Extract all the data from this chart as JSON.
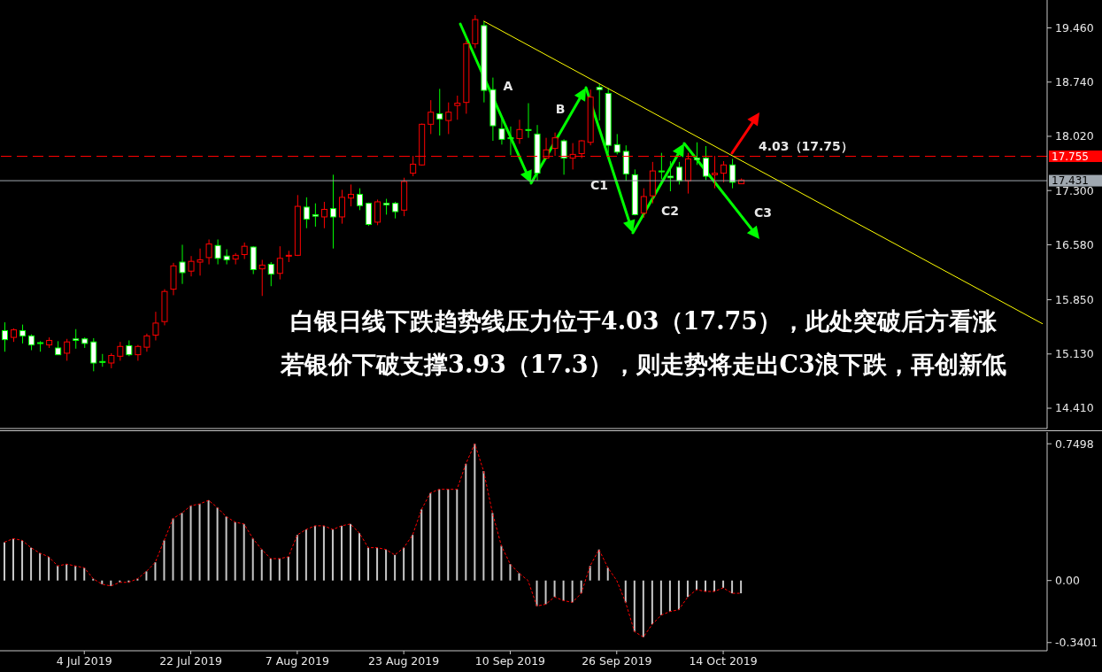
{
  "chart_data": [
    {
      "type": "candlestick",
      "categories": [
        null,
        null,
        null,
        null,
        null,
        null,
        null,
        null,
        null,
        null,
        null,
        null,
        null,
        null,
        null,
        null,
        null,
        null,
        null,
        null,
        null,
        null,
        null,
        null,
        null,
        null,
        null,
        null,
        null,
        null,
        null,
        null,
        null,
        null,
        null,
        null,
        null,
        null,
        null,
        null,
        null,
        null,
        null,
        null,
        null,
        null,
        null,
        null,
        null,
        null,
        null,
        null,
        null,
        null,
        null,
        null,
        null,
        null,
        null,
        null,
        null,
        null,
        null,
        null,
        null,
        null,
        null,
        null,
        null,
        null,
        null,
        null,
        null,
        null,
        null,
        null,
        null,
        null,
        null,
        null,
        null,
        null,
        null,
        null,
        null,
        null,
        null,
        null,
        null,
        null,
        null,
        null,
        null,
        null,
        null,
        null,
        null,
        null,
        null,
        null,
        null,
        null,
        null,
        null,
        null,
        null,
        null,
        null,
        null,
        null,
        null,
        null,
        null,
        null,
        null,
        null,
        null,
        null
      ],
      "series": [
        {
          "ohlc": [
            [
              15.44,
              15.55,
              15.16,
              15.32
            ],
            [
              15.35,
              15.47,
              15.29,
              15.45
            ],
            [
              15.44,
              15.52,
              15.27,
              15.37
            ],
            [
              15.37,
              15.39,
              15.18,
              15.25
            ],
            [
              15.28,
              15.3,
              15.16,
              15.27
            ],
            [
              15.25,
              15.35,
              15.21,
              15.31
            ],
            [
              15.21,
              15.3,
              15.12,
              15.12
            ],
            [
              15.14,
              15.33,
              15.04,
              15.29
            ],
            [
              15.33,
              15.46,
              15.2,
              15.31
            ],
            [
              15.33,
              15.35,
              15.21,
              15.27
            ],
            [
              15.29,
              15.34,
              14.9,
              15.01
            ],
            [
              15.03,
              15.13,
              14.96,
              15.02
            ],
            [
              15.01,
              15.14,
              14.94,
              15.11
            ],
            [
              15.1,
              15.29,
              15.04,
              15.23
            ],
            [
              15.24,
              15.31,
              15.1,
              15.12
            ],
            [
              15.12,
              15.25,
              15.04,
              15.23
            ],
            [
              15.22,
              15.4,
              15.16,
              15.37
            ],
            [
              15.38,
              15.69,
              15.31,
              15.54
            ],
            [
              15.56,
              15.99,
              15.51,
              15.96
            ],
            [
              15.99,
              16.34,
              15.91,
              16.3
            ],
            [
              16.35,
              16.58,
              16.06,
              16.21
            ],
            [
              16.23,
              16.43,
              16.16,
              16.36
            ],
            [
              16.35,
              16.53,
              16.17,
              16.38
            ],
            [
              16.41,
              16.65,
              16.32,
              16.59
            ],
            [
              16.57,
              16.65,
              16.32,
              16.4
            ],
            [
              16.43,
              16.52,
              16.32,
              16.38
            ],
            [
              16.39,
              16.47,
              16.32,
              16.44
            ],
            [
              16.45,
              16.61,
              16.39,
              16.56
            ],
            [
              16.55,
              16.56,
              16.19,
              16.25
            ],
            [
              16.26,
              16.38,
              15.9,
              16.31
            ],
            [
              16.32,
              16.35,
              16.03,
              16.19
            ],
            [
              16.2,
              16.56,
              16.12,
              16.4
            ],
            [
              16.43,
              16.5,
              16.35,
              16.44
            ],
            [
              16.44,
              17.24,
              16.43,
              17.09
            ],
            [
              17.08,
              17.21,
              16.8,
              16.92
            ],
            [
              16.98,
              17.13,
              16.82,
              16.96
            ],
            [
              16.95,
              17.15,
              16.8,
              17.05
            ],
            [
              17.06,
              17.51,
              16.53,
              16.95
            ],
            [
              16.95,
              17.31,
              16.86,
              17.21
            ],
            [
              17.2,
              17.38,
              17.09,
              17.25
            ],
            [
              17.25,
              17.33,
              17.04,
              17.1
            ],
            [
              17.13,
              17.14,
              16.83,
              16.85
            ],
            [
              16.88,
              17.18,
              16.84,
              17.15
            ],
            [
              17.13,
              17.19,
              16.98,
              17.11
            ],
            [
              17.13,
              17.15,
              16.93,
              17.02
            ],
            [
              17.04,
              17.47,
              16.96,
              17.42
            ],
            [
              17.53,
              17.76,
              17.49,
              17.65
            ],
            [
              17.64,
              18.19,
              17.63,
              18.18
            ],
            [
              18.18,
              18.5,
              18.05,
              18.34
            ],
            [
              18.32,
              18.65,
              18.03,
              18.25
            ],
            [
              18.23,
              18.47,
              18.05,
              18.34
            ],
            [
              18.43,
              18.56,
              18.24,
              18.46
            ],
            [
              18.47,
              19.29,
              18.32,
              19.25
            ],
            [
              19.25,
              19.63,
              19.19,
              19.57
            ],
            [
              19.49,
              19.55,
              18.47,
              18.63
            ],
            [
              18.64,
              18.8,
              17.96,
              18.16
            ],
            [
              18.12,
              18.29,
              17.91,
              17.98
            ],
            [
              18,
              18.15,
              17.77,
              17.99
            ],
            [
              17.99,
              18.24,
              17.92,
              18.11
            ],
            [
              18.11,
              18.46,
              18,
              18.1
            ],
            [
              18.05,
              18.17,
              17.43,
              17.53
            ],
            [
              17.73,
              18,
              17.72,
              17.84
            ],
            [
              17.86,
              18.07,
              17.76,
              18
            ],
            [
              17.96,
              17.98,
              17.51,
              17.73
            ],
            [
              17.73,
              17.93,
              17.58,
              17.78
            ],
            [
              17.79,
              17.97,
              17.73,
              17.96
            ],
            [
              17.94,
              18.64,
              17.9,
              18.54
            ],
            [
              18.67,
              18.72,
              18.23,
              18.64
            ],
            [
              18.59,
              18.66,
              17.8,
              17.9
            ],
            [
              17.91,
              18.05,
              17.78,
              17.81
            ],
            [
              17.82,
              17.9,
              17.43,
              17.52
            ],
            [
              17.51,
              17.58,
              16.97,
              16.98
            ],
            [
              17,
              17.33,
              16.94,
              17.22
            ],
            [
              17.23,
              17.68,
              17.13,
              17.56
            ],
            [
              17.56,
              17.8,
              17.45,
              17.55
            ],
            [
              17.49,
              17.69,
              17.29,
              17.47
            ],
            [
              17.61,
              17.68,
              17.38,
              17.43
            ],
            [
              17.43,
              17.8,
              17.26,
              17.72
            ],
            [
              17.73,
              17.94,
              17.64,
              17.71
            ],
            [
              17.73,
              17.89,
              17.44,
              17.49
            ],
            [
              17.51,
              17.76,
              17.33,
              17.53
            ],
            [
              17.53,
              17.69,
              17.41,
              17.64
            ],
            [
              17.64,
              17.72,
              17.33,
              17.41
            ],
            [
              17.39,
              17.46,
              17.39,
              17.44
            ],
            null,
            null,
            null,
            null,
            null,
            null,
            null,
            null,
            null,
            null,
            null,
            null,
            null,
            null,
            null,
            null,
            null,
            null,
            null,
            null,
            null,
            null,
            null,
            null,
            null,
            null,
            null,
            null,
            null,
            null,
            null,
            null,
            null,
            null
          ],
          "colors": [
            "#ffffff",
            "#ff0000",
            "#ffffff",
            "#ffffff",
            "#ffffff",
            "#ff0000",
            "#ffffff",
            "#ff0000",
            "#ffffff",
            "#ffffff",
            "#ffffff",
            "#ffffff",
            "#ff0000",
            "#ff0000",
            "#ffffff",
            "#ff0000",
            "#ff0000",
            "#ff0000",
            "#ff0000",
            "#ff0000",
            "#ffffff",
            "#ff0000",
            "#ff0000",
            "#ff0000",
            "#ffffff",
            "#ffffff",
            "#ff0000",
            "#ff0000",
            "#ffffff",
            "#ff0000",
            "#ffffff",
            "#ff0000",
            "#ff0000",
            "#ff0000",
            "#ffffff",
            "#ffffff",
            "#ff0000",
            "#ffffff",
            "#ff0000",
            "#ff0000",
            "#ffffff",
            "#ffffff",
            "#ff0000",
            "#ffffff",
            "#ffffff",
            "#ff0000",
            "#ff0000",
            "#ff0000",
            "#ff0000",
            "#ffffff",
            "#ff0000",
            "#ff0000",
            "#ff0000",
            "#ff0000",
            "#ffffff",
            "#ffffff",
            "#ffffff",
            "#ffffff",
            "#ff0000",
            "#ffffff",
            "#ffffff",
            "#ff0000",
            "#ff0000",
            "#ffffff",
            "#ff0000",
            "#ff0000",
            "#ff0000",
            "#ffffff",
            "#ffffff",
            "#ffffff",
            "#ffffff",
            "#ffffff",
            "#ff0000",
            "#ff0000",
            "#ffffff",
            "#ffffff",
            "#ffffff",
            "#ff0000",
            "#ffffff",
            "#ffffff",
            "#ff0000",
            "#ff0000",
            "#ffffff",
            "#ff0000",
            null,
            null,
            null,
            null,
            null,
            null,
            null,
            null,
            null,
            null,
            null,
            null,
            null,
            null,
            null,
            null,
            null,
            null,
            null,
            null,
            null,
            null,
            null,
            null,
            null,
            null,
            null,
            null,
            null,
            null,
            null,
            null,
            null,
            null
          ]
        },
        {
          "type": "line",
          "color": "#ffff00",
          "values": [
            null,
            null,
            null,
            null,
            null,
            null,
            null,
            null,
            null,
            null,
            null,
            null,
            null,
            null,
            null,
            null,
            null,
            null,
            null,
            null,
            null,
            null,
            null,
            null,
            null,
            null,
            null,
            null,
            null,
            null,
            null,
            null,
            null,
            null,
            null,
            null,
            null,
            null,
            null,
            null,
            null,
            null,
            null,
            null,
            null,
            null,
            null,
            null,
            null,
            null,
            null,
            null,
            null,
            null,
            19.55,
            null,
            null,
            null,
            null,
            null,
            null,
            null,
            null,
            null,
            null,
            null,
            null,
            null,
            null,
            null,
            null,
            null,
            null,
            null,
            null,
            null,
            null,
            null,
            null,
            null,
            null,
            null,
            null,
            null,
            null,
            null,
            null,
            null,
            null,
            null,
            null,
            null,
            null,
            null,
            null,
            null,
            null,
            null,
            null,
            null,
            null,
            null,
            null,
            null,
            null,
            null,
            null,
            null,
            null,
            null,
            null,
            null,
            null,
            null,
            null,
            null,
            null,
            15.53
          ]
        }
      ],
      "ylim": [
        14.14,
        19.83
      ],
      "yticks": [
        {
          "value": 19.46,
          "label": "19.460"
        },
        {
          "value": 18.74,
          "label": "18.740"
        },
        {
          "value": 18.02,
          "label": "18.020"
        },
        {
          "value": 17.3,
          "label": "17.300"
        },
        {
          "value": 16.58,
          "label": "16.580"
        },
        {
          "value": 15.85,
          "label": "15.850"
        },
        {
          "value": 15.13,
          "label": "15.130"
        },
        {
          "value": 14.41,
          "label": "14.410"
        }
      ],
      "tick_labels": "y",
      "ref_lines": [
        {
          "axis": "y",
          "value": 17.755,
          "label": "17.755",
          "color": "#ff0000",
          "line_style": "dashed"
        },
        {
          "axis": "y",
          "value": 17.431,
          "label": "17.431",
          "color": "#a0a8b0",
          "line_style": "solid"
        }
      ],
      "annotations": [
        "A",
        "B",
        "C1",
        "C2",
        "C3",
        "4.03（17.75）",
        "白银日线下跌趋势线压力位于4.03（17.75），此处突破后方看涨",
        "若银价下破支撑3.93（17.3），则走势将走出C3浪下跌，再创新低"
      ]
    },
    {
      "type": "bar",
      "categories": [
        null,
        null,
        null,
        null,
        null,
        null,
        null,
        null,
        null,
        "4 Jul 2019",
        null,
        null,
        null,
        null,
        null,
        null,
        null,
        null,
        null,
        null,
        null,
        "22 Jul 2019",
        null,
        null,
        null,
        null,
        null,
        null,
        null,
        null,
        null,
        null,
        null,
        "7 Aug 2019",
        null,
        null,
        null,
        null,
        null,
        null,
        null,
        null,
        null,
        null,
        null,
        "23 Aug 2019",
        null,
        null,
        null,
        null,
        null,
        null,
        null,
        null,
        null,
        null,
        null,
        "10 Sep 2019",
        null,
        null,
        null,
        null,
        null,
        null,
        null,
        null,
        null,
        null,
        null,
        "26 Sep 2019",
        null,
        null,
        null,
        null,
        null,
        null,
        null,
        null,
        null,
        null,
        null,
        "14 Oct 2019",
        null,
        null,
        null,
        null,
        null,
        null,
        null,
        null,
        null,
        null,
        null,
        null,
        null,
        null,
        null,
        null,
        null,
        null,
        null,
        null,
        null,
        null,
        null,
        null,
        null,
        null,
        null,
        null,
        null,
        null,
        null,
        null,
        null,
        null,
        null,
        null
      ],
      "series": [
        {
          "color": "#c8c8c8",
          "values": [
            0.21,
            0.23,
            0.22,
            0.18,
            0.15,
            0.13,
            0.08,
            0.09,
            0.08,
            0.07,
            0.01,
            -0.02,
            -0.03,
            -0.01,
            -0.01,
            0.01,
            0.05,
            0.1,
            0.22,
            0.34,
            0.37,
            0.41,
            0.42,
            0.44,
            0.4,
            0.35,
            0.32,
            0.31,
            0.23,
            0.17,
            0.12,
            0.12,
            0.13,
            0.25,
            0.28,
            0.3,
            0.3,
            0.28,
            0.3,
            0.31,
            0.26,
            0.18,
            0.18,
            0.17,
            0.14,
            0.18,
            0.25,
            0.39,
            0.48,
            0.5,
            0.5,
            0.5,
            0.64,
            0.75,
            0.6,
            0.37,
            0.19,
            0.09,
            0.04,
            0,
            -0.14,
            -0.13,
            -0.09,
            -0.11,
            -0.12,
            -0.07,
            0.08,
            0.17,
            0.07,
            0,
            -0.12,
            -0.28,
            -0.31,
            -0.24,
            -0.19,
            -0.17,
            -0.16,
            -0.09,
            -0.05,
            -0.06,
            -0.06,
            -0.04,
            -0.07,
            -0.07,
            null,
            null,
            null,
            null,
            null,
            null,
            null,
            null,
            null,
            null,
            null,
            null,
            null,
            null,
            null,
            null,
            null,
            null,
            null,
            null,
            null,
            null,
            null,
            null,
            null,
            null,
            null,
            null,
            null,
            null,
            null,
            null,
            null,
            null
          ]
        },
        {
          "type": "line",
          "color": "#ff0000",
          "line_style": "dotted",
          "values": [
            0.21,
            0.23,
            0.22,
            0.18,
            0.15,
            0.13,
            0.08,
            0.09,
            0.08,
            0.07,
            0.01,
            -0.02,
            -0.03,
            -0.01,
            -0.01,
            0.01,
            0.05,
            0.1,
            0.22,
            0.34,
            0.37,
            0.41,
            0.42,
            0.44,
            0.4,
            0.35,
            0.32,
            0.31,
            0.23,
            0.17,
            0.12,
            0.12,
            0.13,
            0.25,
            0.28,
            0.3,
            0.3,
            0.28,
            0.3,
            0.31,
            0.26,
            0.18,
            0.18,
            0.17,
            0.14,
            0.18,
            0.25,
            0.39,
            0.48,
            0.5,
            0.5,
            0.5,
            0.64,
            0.75,
            0.6,
            0.37,
            0.19,
            0.09,
            0.04,
            0,
            -0.14,
            -0.13,
            -0.09,
            -0.11,
            -0.12,
            -0.07,
            0.08,
            0.17,
            0.07,
            0,
            -0.12,
            -0.28,
            -0.31,
            -0.24,
            -0.19,
            -0.17,
            -0.16,
            -0.09,
            -0.05,
            -0.06,
            -0.06,
            -0.04,
            -0.07,
            -0.07,
            null,
            null,
            null,
            null,
            null,
            null,
            null,
            null,
            null,
            null,
            null,
            null,
            null,
            null,
            null,
            null,
            null,
            null,
            null,
            null,
            null,
            null,
            null,
            null,
            null,
            null,
            null,
            null,
            null,
            null,
            null,
            null,
            null,
            null
          ]
        }
      ],
      "ylim": [
        -0.385,
        0.814
      ],
      "yticks": [
        0.7498,
        {
          "value": 0,
          "label": "0.00"
        },
        -0.3401
      ]
    }
  ]
}
